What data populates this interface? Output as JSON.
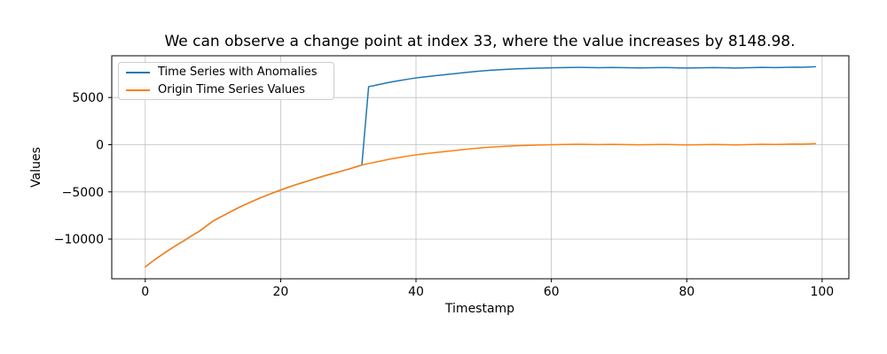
{
  "figure": {
    "title": "We can observe a change point at index 33, where the value increases by 8148.98.",
    "xlabel": "Timestamp",
    "ylabel": "Values"
  },
  "legend": {
    "items": [
      {
        "label": "Time Series with Anomalies",
        "color": "#1f77b4"
      },
      {
        "label": "Origin Time Series Values",
        "color": "#ff7f0e"
      }
    ]
  },
  "colors": {
    "background": "#ffffff",
    "grid": "#c0c0c0",
    "spine": "#000000",
    "text": "#000000",
    "series_anomaly": "#1f77b4",
    "series_origin": "#ff7f0e"
  },
  "chart_data": {
    "type": "line",
    "title": "We can observe a change point at index 33, where the value increases by 8148.98.",
    "xlabel": "Timestamp",
    "ylabel": "Values",
    "grid": true,
    "legend_position": "upper left",
    "xlim": [
      -4.95,
      103.95
    ],
    "ylim": [
      -14212,
      9425
    ],
    "xticks": [
      0,
      20,
      40,
      60,
      80,
      100
    ],
    "xtick_labels": [
      "0",
      "20",
      "40",
      "60",
      "80",
      "100"
    ],
    "yticks": [
      -10000,
      -5000,
      0,
      5000
    ],
    "ytick_labels": [
      "−10000",
      "−5000",
      "0",
      "5000"
    ],
    "change_point": {
      "index": 33,
      "increase": 8148.98
    },
    "x": [
      0,
      1,
      2,
      3,
      4,
      5,
      6,
      7,
      8,
      9,
      10,
      11,
      12,
      13,
      14,
      15,
      16,
      17,
      18,
      19,
      20,
      21,
      22,
      23,
      24,
      25,
      26,
      27,
      28,
      29,
      30,
      31,
      32,
      33,
      34,
      35,
      36,
      37,
      38,
      39,
      40,
      41,
      42,
      43,
      44,
      45,
      46,
      47,
      48,
      49,
      50,
      51,
      52,
      53,
      54,
      55,
      56,
      57,
      58,
      59,
      60,
      61,
      62,
      63,
      64,
      65,
      66,
      67,
      68,
      69,
      70,
      71,
      72,
      73,
      74,
      75,
      76,
      77,
      78,
      79,
      80,
      81,
      82,
      83,
      84,
      85,
      86,
      87,
      88,
      89,
      90,
      91,
      92,
      93,
      94,
      95,
      96,
      97,
      98,
      99
    ],
    "series": [
      {
        "name": "Time Series with Anomalies",
        "color": "#1f77b4",
        "values": [
          -12950,
          -12400,
          -11890,
          -11400,
          -10930,
          -10480,
          -10050,
          -9590,
          -9170,
          -8630,
          -8100,
          -7710,
          -7340,
          -6960,
          -6600,
          -6270,
          -5950,
          -5640,
          -5350,
          -5070,
          -4810,
          -4550,
          -4300,
          -4070,
          -3850,
          -3620,
          -3400,
          -3190,
          -3000,
          -2800,
          -2600,
          -2380,
          -2150,
          6148.98,
          6298.98,
          6448.98,
          6598.98,
          6728.98,
          6848.98,
          6968.98,
          7073.98,
          7163.98,
          7248.98,
          7328.98,
          7398.98,
          7473.98,
          7548.98,
          7628.98,
          7698.98,
          7768.98,
          7828.98,
          7883.98,
          7928.98,
          7973.98,
          8008.98,
          8043.98,
          8068.98,
          8088.98,
          8108.98,
          8128.98,
          8143.98,
          8158.98,
          8173.98,
          8178.98,
          8188.98,
          8183.98,
          8173.98,
          8163.98,
          8168.98,
          8178.98,
          8173.98,
          8158.98,
          8148.98,
          8138.98,
          8148.98,
          8163.98,
          8173.98,
          8168.98,
          8153.98,
          8133.98,
          8123.98,
          8133.98,
          8148.98,
          8158.98,
          8168.98,
          8158.98,
          8143.98,
          8128.98,
          8138.98,
          8153.98,
          8173.98,
          8188.98,
          8178.98,
          8168.98,
          8183.98,
          8203.98,
          8218.98,
          8208.98,
          8228.98,
          8258.98
        ]
      },
      {
        "name": "Origin Time Series Values",
        "color": "#ff7f0e",
        "values": [
          -12950,
          -12400,
          -11890,
          -11400,
          -10930,
          -10480,
          -10050,
          -9590,
          -9170,
          -8630,
          -8100,
          -7710,
          -7340,
          -6960,
          -6600,
          -6270,
          -5950,
          -5640,
          -5350,
          -5070,
          -4810,
          -4550,
          -4300,
          -4070,
          -3850,
          -3620,
          -3400,
          -3190,
          -3000,
          -2800,
          -2600,
          -2380,
          -2150,
          -2000,
          -1850,
          -1700,
          -1550,
          -1420,
          -1300,
          -1180,
          -1075,
          -985,
          -900,
          -820,
          -750,
          -675,
          -600,
          -520,
          -450,
          -380,
          -320,
          -265,
          -220,
          -175,
          -140,
          -105,
          -80,
          -60,
          -40,
          -20,
          -5,
          10,
          25,
          30,
          40,
          35,
          25,
          15,
          20,
          30,
          25,
          10,
          0,
          -10,
          0,
          15,
          25,
          20,
          5,
          -15,
          -25,
          -15,
          0,
          10,
          20,
          10,
          -5,
          -20,
          -10,
          5,
          25,
          40,
          30,
          20,
          35,
          55,
          70,
          60,
          80,
          110
        ]
      }
    ]
  }
}
